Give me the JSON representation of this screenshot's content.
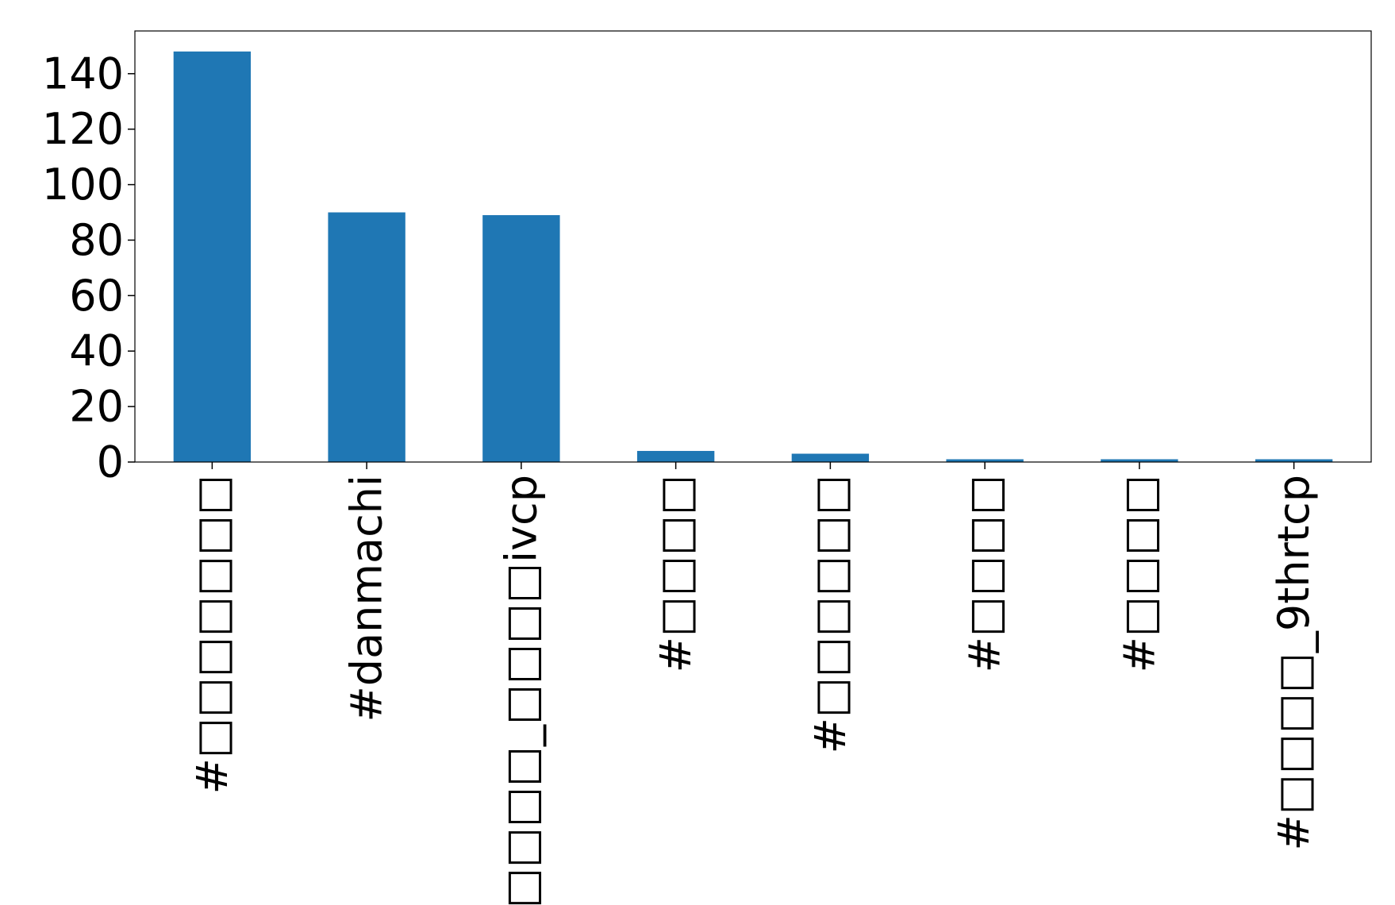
{
  "chart_data": {
    "type": "bar",
    "categories": [
      "#□□□□□□□",
      "#danmachi",
      "#□□□□_□□□□ivcp",
      "#□□□□",
      "#□□□□□□",
      "#□□□□",
      "#□□□□",
      "#□□□□_9thrtcp"
    ],
    "values": [
      148,
      90,
      89,
      4,
      3,
      1,
      1,
      1
    ],
    "color": "#1f77b4",
    "ylim": [
      0,
      155.4
    ],
    "yticks": [
      0,
      20,
      40,
      60,
      80,
      100,
      120,
      140
    ]
  }
}
